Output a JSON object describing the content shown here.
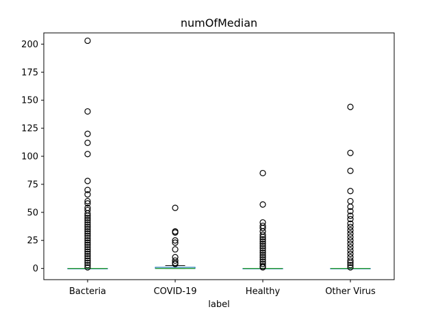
{
  "chart_data": {
    "type": "box",
    "title": "numOfMedian",
    "xlabel": "label",
    "ylabel": "",
    "ylim": [
      -10,
      210
    ],
    "yticks": [
      0,
      25,
      50,
      75,
      100,
      125,
      150,
      175,
      200
    ],
    "grid": false,
    "categories": [
      "Bacteria",
      "COVID-19",
      "Healthy",
      "Other Virus"
    ],
    "boxes": [
      {
        "q1": 0,
        "median": 0,
        "q3": 0,
        "whisker_low": 0,
        "whisker_high": 0
      },
      {
        "q1": 0,
        "median": 0,
        "q3": 1,
        "whisker_low": 0,
        "whisker_high": 2.5
      },
      {
        "q1": 0,
        "median": 0,
        "q3": 0,
        "whisker_low": 0,
        "whisker_high": 0
      },
      {
        "q1": 0,
        "median": 0,
        "q3": 0,
        "whisker_low": 0,
        "whisker_high": 0
      }
    ],
    "fliers": [
      [
        203,
        140,
        120,
        112,
        102,
        78,
        70,
        66,
        60,
        58,
        54,
        52,
        49,
        47,
        45,
        43,
        41,
        39,
        37,
        35,
        33,
        31,
        29,
        27,
        25,
        23,
        21,
        19,
        17,
        15,
        13,
        11,
        9,
        7,
        5,
        3,
        1
      ],
      [
        54,
        33,
        32,
        25,
        23,
        17,
        10,
        7,
        5,
        4
      ],
      [
        85,
        57,
        41,
        38,
        36,
        33,
        30,
        28,
        26,
        24,
        22,
        20,
        18,
        16,
        14,
        12,
        10,
        8,
        6,
        4,
        2,
        1
      ],
      [
        144,
        103,
        87,
        69,
        60,
        55,
        51,
        47,
        44,
        40,
        37,
        34,
        31,
        28,
        25,
        22,
        19,
        16,
        13,
        10,
        7,
        5,
        3,
        1
      ]
    ],
    "colors": {
      "box": "#1f77b4",
      "median": "#2ca02c",
      "whisker": "#000000",
      "flier": "#000000"
    }
  }
}
